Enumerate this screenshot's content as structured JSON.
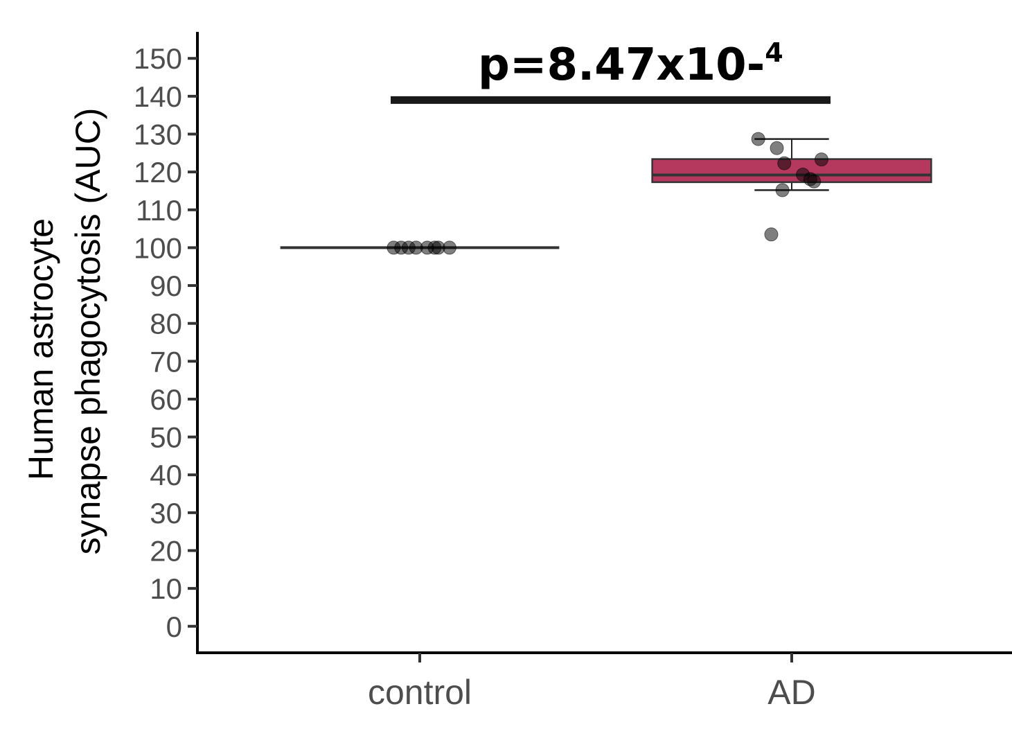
{
  "chart_data": {
    "type": "box",
    "title": "",
    "xlabel": "",
    "ylabel_lines": [
      "Human astrocyte",
      "synapse phagocytosis (AUC)"
    ],
    "ylim": [
      -7,
      157
    ],
    "yticks": [
      0,
      10,
      20,
      30,
      40,
      50,
      60,
      70,
      80,
      90,
      100,
      110,
      120,
      130,
      140,
      150
    ],
    "categories": [
      "control",
      "AD"
    ],
    "grid": false,
    "legend": "none",
    "boxes": [
      {
        "category": "control",
        "min": 100,
        "q1": 100,
        "median": 100,
        "q3": 100,
        "max": 100,
        "fill": "#b5395f"
      },
      {
        "category": "AD",
        "min": 115.2,
        "q1": 117.3,
        "median": 119.2,
        "q3": 123.4,
        "max": 128.7,
        "fill": "#b5395f"
      }
    ],
    "points": [
      {
        "category": "control",
        "offset": -0.07,
        "y": 100
      },
      {
        "category": "control",
        "offset": -0.05,
        "y": 100
      },
      {
        "category": "control",
        "offset": -0.03,
        "y": 100
      },
      {
        "category": "control",
        "offset": -0.01,
        "y": 100
      },
      {
        "category": "control",
        "offset": 0.02,
        "y": 100
      },
      {
        "category": "control",
        "offset": 0.04,
        "y": 100
      },
      {
        "category": "control",
        "offset": 0.05,
        "y": 100
      },
      {
        "category": "control",
        "offset": 0.08,
        "y": 100
      },
      {
        "category": "AD",
        "offset": -0.09,
        "y": 128.7
      },
      {
        "category": "AD",
        "offset": -0.04,
        "y": 126.3
      },
      {
        "category": "AD",
        "offset": -0.02,
        "y": 122.3
      },
      {
        "category": "AD",
        "offset": 0.08,
        "y": 123.3
      },
      {
        "category": "AD",
        "offset": 0.03,
        "y": 119.3
      },
      {
        "category": "AD",
        "offset": 0.05,
        "y": 118.1
      },
      {
        "category": "AD",
        "offset": 0.06,
        "y": 117.5
      },
      {
        "category": "AD",
        "offset": -0.025,
        "y": 115.2
      },
      {
        "category": "AD",
        "offset": -0.055,
        "y": 103.5
      }
    ],
    "significance": {
      "from": "control",
      "to": "AD",
      "y": 139,
      "label": "p=8.47x10-",
      "exponent": "4"
    }
  }
}
